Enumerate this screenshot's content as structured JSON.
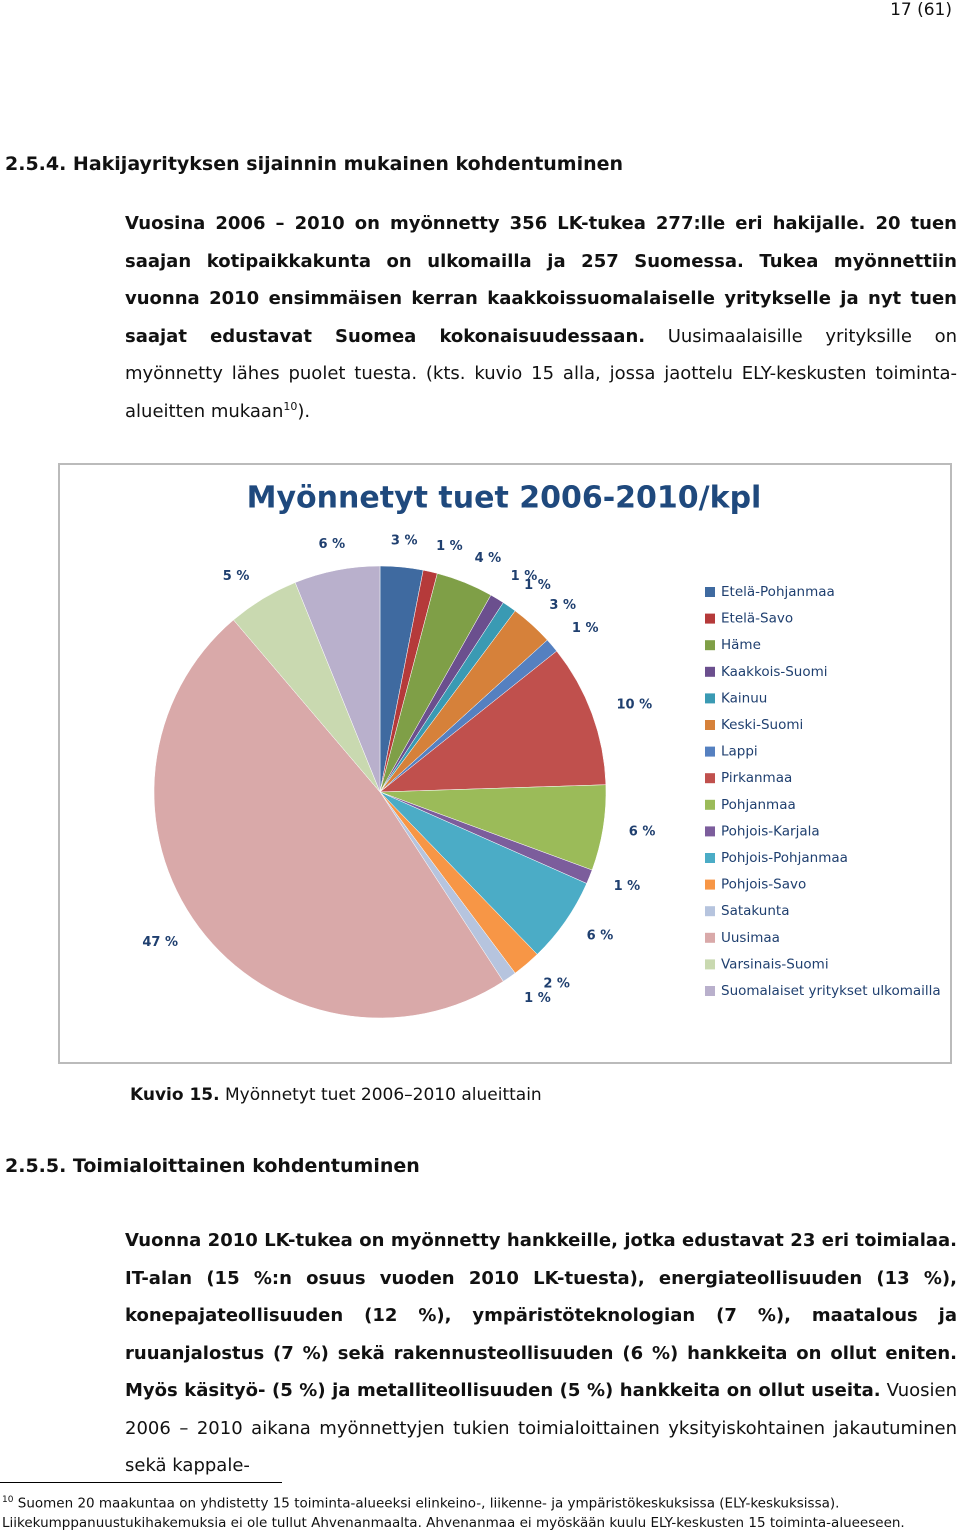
{
  "page_number": "17 (61)",
  "sections": [
    {
      "heading": "2.5.4. Hakijayrityksen sijainnin mukainen kohdentuminen",
      "paragraph": [
        {
          "text": "Vuosina 2006 – 2010 on myönnetty 356 LK-tukea 277:lle eri hakijalle. 20 tuen saajan kotipaikkakunta on ulkomailla ja 257 Suomessa. Tukea myönnettiin vuonna 2010 ensimmäisen kerran kaakkoissuomalaiselle yritykselle ja nyt tuen saajat edustavat Suomea kokonaisuudessaan.",
          "bold": true
        },
        {
          "text": " Uusimaalaisille yrityksille on myönnetty lähes puolet tuesta. (kts. kuvio 15 alla, jossa jaottelu ELY-keskusten toiminta-alueitten mukaan",
          "bold": false
        },
        {
          "text": "10",
          "sup": true
        },
        {
          "text": ").",
          "bold": false
        }
      ]
    },
    {
      "heading": "2.5.5. Toimialoittainen kohdentuminen",
      "paragraph": [
        {
          "text": "Vuonna 2010 LK-tukea on myönnetty hankkeille, jotka edustavat 23 eri toimialaa. IT-alan (15 %:n osuus vuoden 2010 LK-tuesta), energiateollisuuden (13 %), konepajateollisuuden (12 %), ympäristöteknologian (7 %), maatalous ja ruuanjalostus (7 %) sekä rakennusteollisuuden (6 %) hankkeita on ollut eniten.  Myös käsityö- (5 %) ja metalliteollisuuden (5 %) hankkeita on ollut useita.",
          "bold": true
        },
        {
          "text": " Vuosien 2006 – 2010 aikana myönnettyjen tukien toimialoittainen yksityiskohtainen jakautuminen sekä kappale-",
          "bold": false
        }
      ]
    }
  ],
  "caption": {
    "label": "Kuvio 15.",
    "text": "Myönnetyt tuet 2006–2010 alueittain"
  },
  "footnote": {
    "marker": "10",
    "text": "Suomen 20 maakuntaa on yhdistetty 15 toiminta-alueeksi elinkeino-, liikenne- ja ympäristökeskuksissa (ELY-keskuksissa). Liikekumppanuustukihakemuksia ei ole tullut Ahvenanmaalta. Ahvenanmaa ei myöskään kuulu ELY-keskusten 15 toiminta-alueeseen."
  },
  "chart_data": {
    "type": "pie",
    "title": "Myönnetyt tuet 2006-2010/kpl",
    "legend": "right",
    "categories": [
      "Etelä-Pohjanmaa",
      "Etelä-Savo",
      "Häme",
      "Kaakkois-Suomi",
      "Kainuu",
      "Keski-Suomi",
      "Lappi",
      "Pirkanmaa",
      "Pohjanmaa",
      "Pohjois-Karjala",
      "Pohjois-Pohjanmaa",
      "Pohjois-Savo",
      "Satakunta",
      "Uusimaa",
      "Varsinais-Suomi",
      "Suomalaiset yritykset ulkomailla"
    ],
    "values": [
      3,
      1,
      4,
      1,
      1,
      3,
      1,
      10,
      6,
      1,
      6,
      2,
      1,
      47,
      5,
      6
    ],
    "value_labels": [
      "3 %",
      "1 %",
      "4 %",
      "1 %",
      "1 %",
      "3 %",
      "1 %",
      "10 %",
      "6 %",
      "1 %",
      "6 %",
      "2 %",
      "1 %",
      "47 %",
      "5 %",
      "6 %"
    ],
    "colors": [
      "#3f6aa0",
      "#b53a3a",
      "#7f9f47",
      "#6b4f8e",
      "#3a9ab3",
      "#d6813a",
      "#5580c0",
      "#c0504d",
      "#9bbb59",
      "#7c5d9c",
      "#4bacc6",
      "#f79646",
      "#b6c4de",
      "#d9a9a9",
      "#c9d9b0",
      "#b9b0cc"
    ]
  }
}
